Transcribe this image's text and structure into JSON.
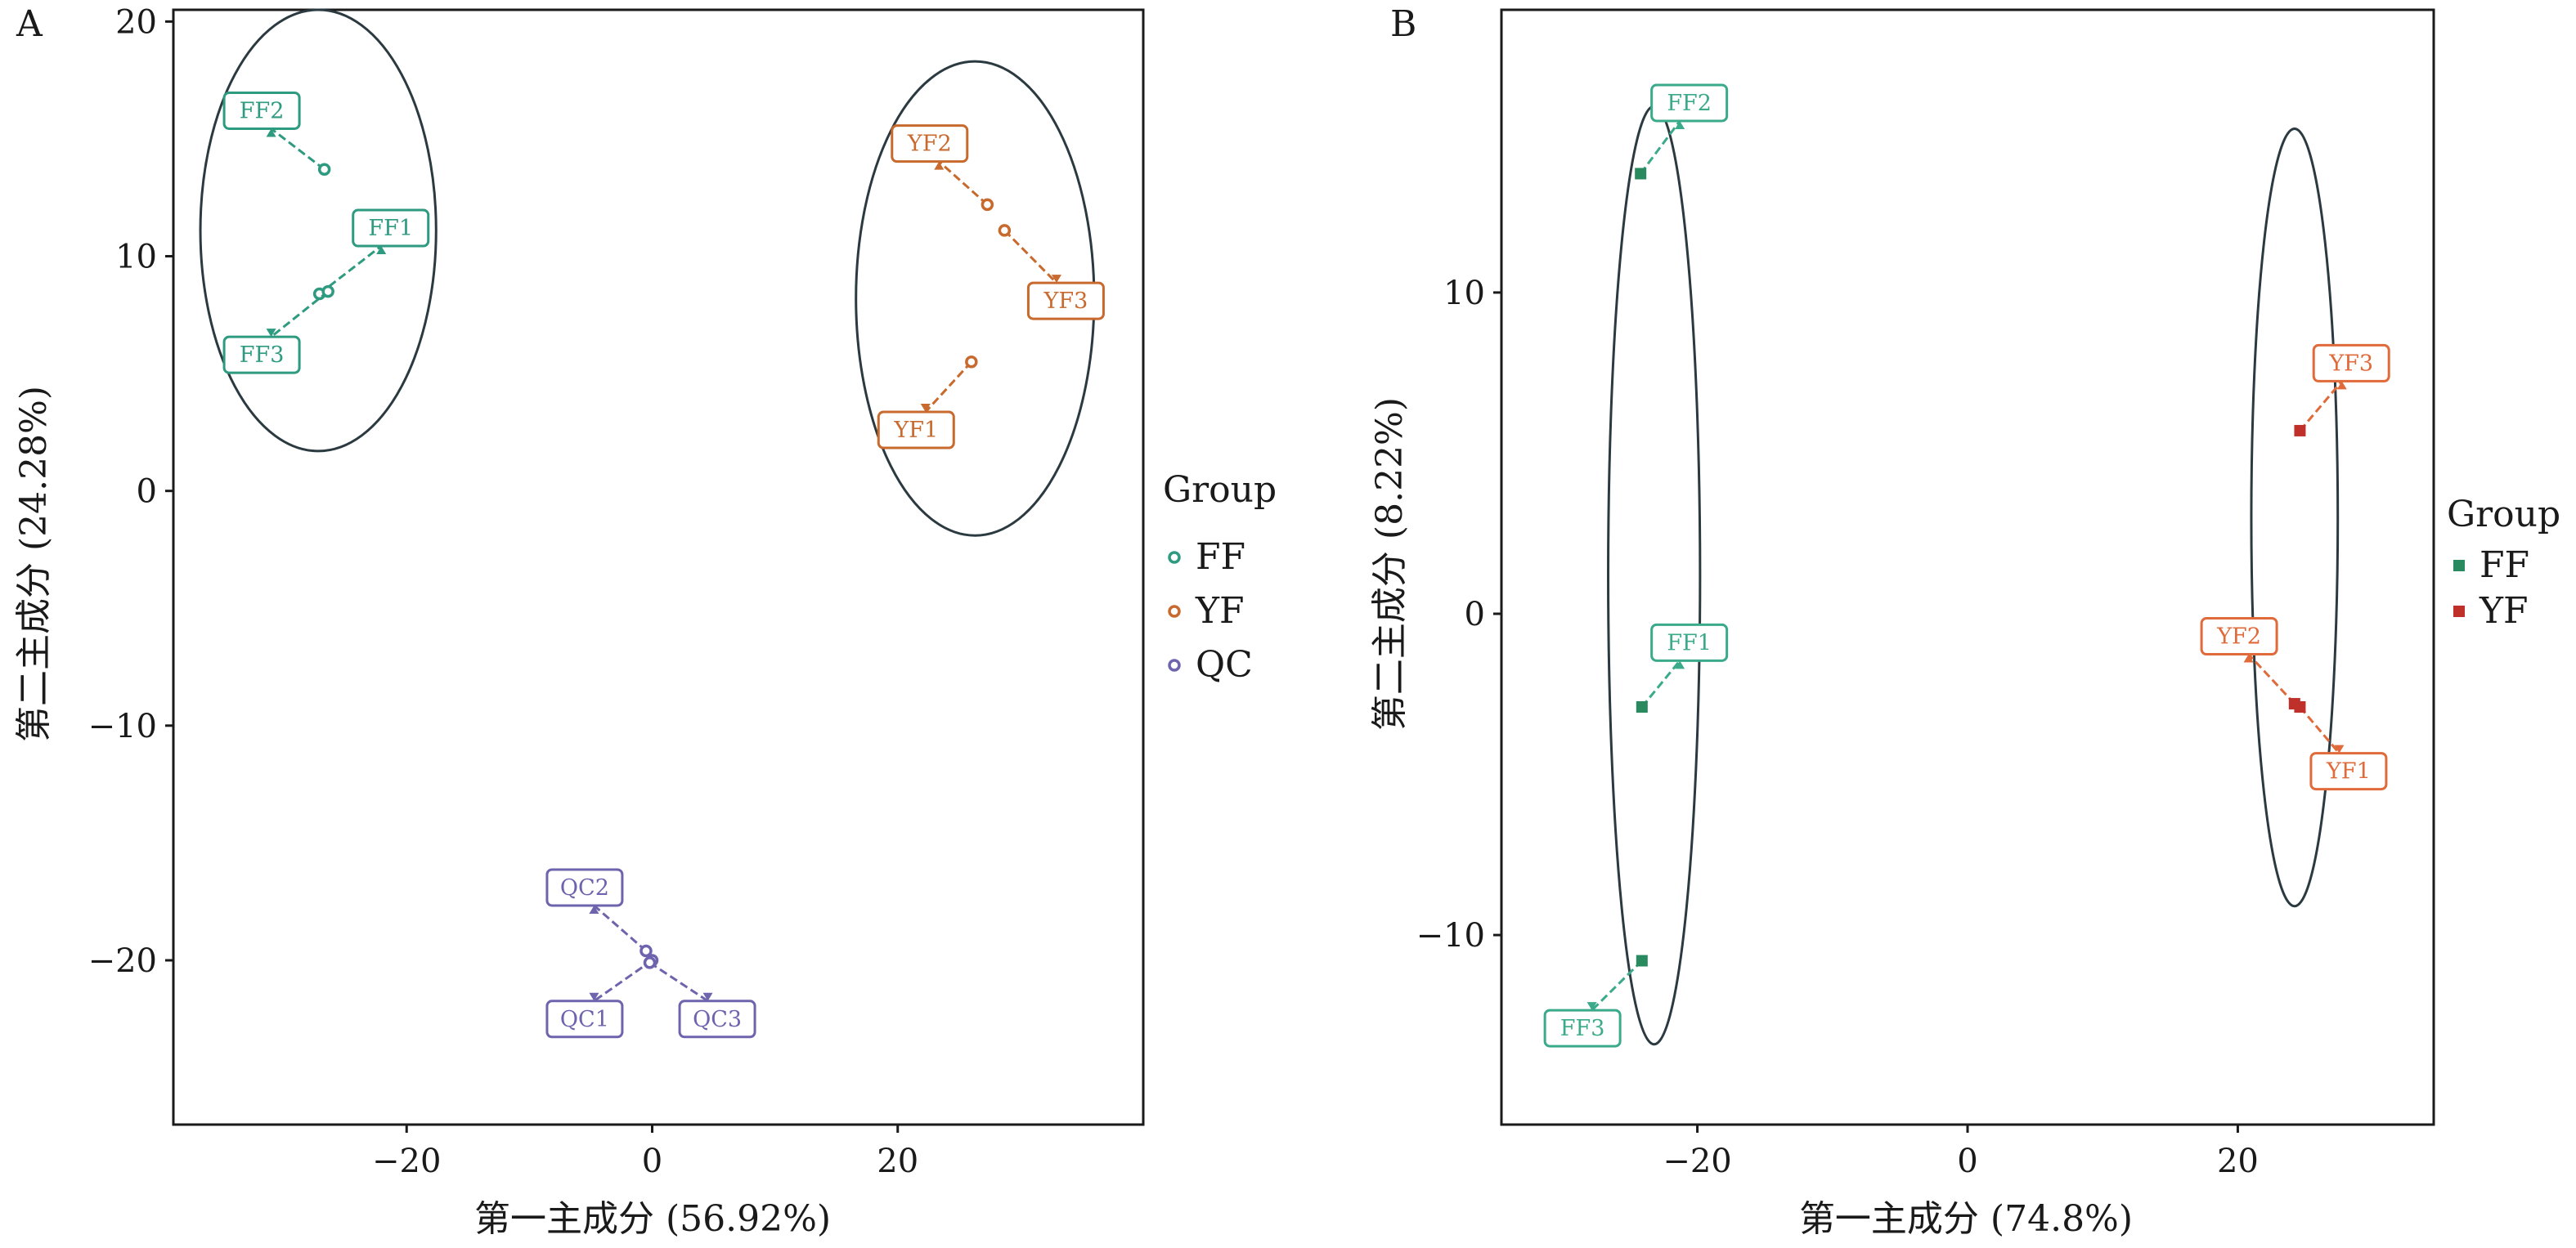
{
  "chart_data": [
    {
      "type": "scatter",
      "panel": "A",
      "xlabel": "第一主成分 (56.92%)",
      "ylabel": "第二主成分 (24.28%)",
      "xlim": [
        -39,
        40
      ],
      "ylim": [
        -27,
        20.5
      ],
      "xticks": [
        -20,
        0,
        20
      ],
      "yticks": [
        -20,
        -10,
        0,
        10,
        20
      ],
      "legend": {
        "title": "Group",
        "marker": "ring",
        "position": "right"
      },
      "series": [
        {
          "name": "FF",
          "color": "#2e9a80",
          "points": [
            {
              "x": -26.7,
              "y": 13.7,
              "label": "FF2",
              "lx": -31.8,
              "ly": 16.2
            },
            {
              "x": -27.1,
              "y": 8.4,
              "label": "FF1",
              "lx": -21.3,
              "ly": 11.2
            },
            {
              "x": -26.4,
              "y": 8.5,
              "label": "FF3",
              "lx": -31.8,
              "ly": 5.8
            }
          ]
        },
        {
          "name": "YF",
          "color": "#c8692e",
          "points": [
            {
              "x": 27.3,
              "y": 12.2,
              "label": "YF2",
              "lx": 22.6,
              "ly": 14.8
            },
            {
              "x": 28.7,
              "y": 11.1,
              "label": "YF3",
              "lx": 33.7,
              "ly": 8.1
            },
            {
              "x": 26.0,
              "y": 5.5,
              "label": "YF1",
              "lx": 21.5,
              "ly": 2.6
            }
          ]
        },
        {
          "name": "QC",
          "color": "#6e64ae",
          "points": [
            {
              "x": -0.5,
              "y": -19.6,
              "label": "QC2",
              "lx": -5.5,
              "ly": -16.9
            },
            {
              "x": 0.0,
              "y": -20.0,
              "label": "QC1",
              "lx": -5.5,
              "ly": -22.5
            },
            {
              "x": -0.2,
              "y": -20.1,
              "label": "QC3",
              "lx": 5.3,
              "ly": -22.5
            }
          ]
        }
      ],
      "ellipses": [
        {
          "cx": -27.2,
          "cy": 11.1,
          "rx": 9.6,
          "ry": 9.4
        },
        {
          "cx": 26.3,
          "cy": 8.2,
          "rx": 9.7,
          "ry": 10.1
        }
      ]
    },
    {
      "type": "scatter",
      "panel": "B",
      "xlabel": "第一主成分 (74.8%)",
      "ylabel": "第二主成分 (8.22%)",
      "xlim": [
        -34.5,
        34.5
      ],
      "ylim": [
        -15.9,
        18.8
      ],
      "xticks": [
        -20,
        0,
        20
      ],
      "yticks": [
        -10,
        0,
        10
      ],
      "legend": {
        "title": "Group",
        "marker": "square",
        "position": "right"
      },
      "series": [
        {
          "name": "FF",
          "color": "#2a8a5f",
          "labelColor": "#3aaa8a",
          "points": [
            {
              "x": -24.2,
              "y": 13.7,
              "label": "FF2",
              "lx": -20.6,
              "ly": 15.9
            },
            {
              "x": -24.1,
              "y": -2.9,
              "label": "FF1",
              "lx": -20.6,
              "ly": -0.9
            },
            {
              "x": -24.1,
              "y": -10.8,
              "label": "FF3",
              "lx": -28.5,
              "ly": -12.9
            }
          ]
        },
        {
          "name": "YF",
          "color": "#c0302b",
          "labelColor": "#e06a3a",
          "points": [
            {
              "x": 24.6,
              "y": 5.7,
              "label": "YF3",
              "lx": 28.4,
              "ly": 7.8
            },
            {
              "x": 24.2,
              "y": -2.8,
              "label": "YF2",
              "lx": 20.1,
              "ly": -0.7
            },
            {
              "x": 24.6,
              "y": -2.9,
              "label": "YF1",
              "lx": 28.2,
              "ly": -4.9
            }
          ]
        }
      ],
      "ellipses": [
        {
          "cx": -23.2,
          "cy": 1.2,
          "rx": 3.4,
          "ry": 14.6
        },
        {
          "cx": 24.2,
          "cy": 3.0,
          "rx": 3.2,
          "ry": 12.1
        }
      ]
    }
  ]
}
